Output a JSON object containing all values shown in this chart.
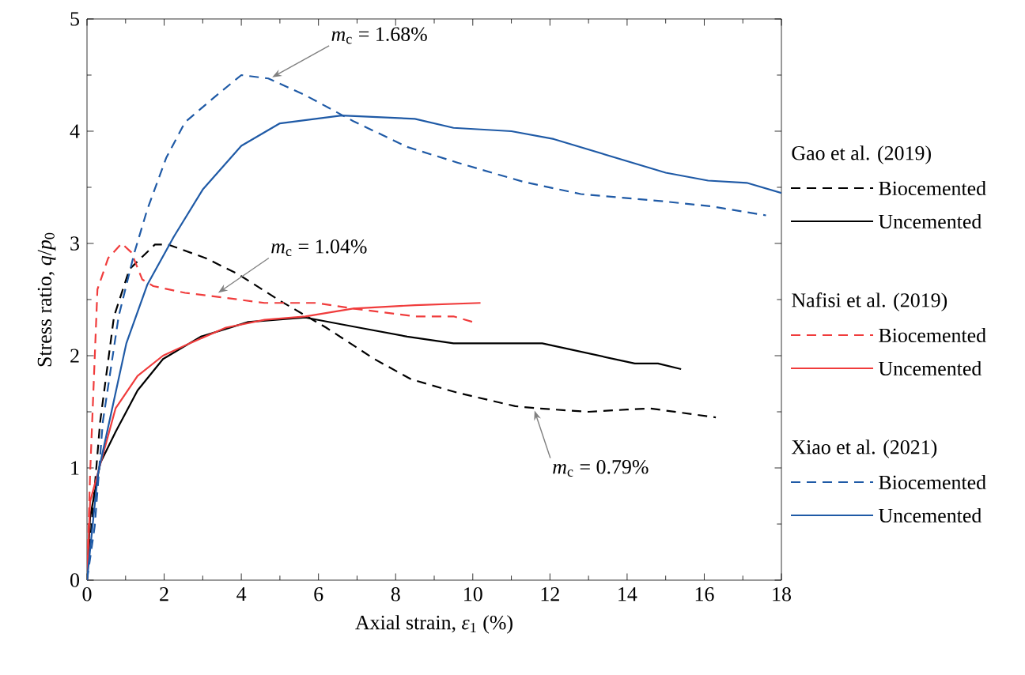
{
  "chart_data": {
    "type": "line",
    "xlabel": "Axial strain, *ε*$_{1}$ (%)",
    "ylabel": "Stress ratio, *q*/*p*$_{0}$",
    "xlim": [
      0,
      18
    ],
    "ylim": [
      0,
      5
    ],
    "xticks": [
      0,
      2,
      4,
      6,
      8,
      10,
      12,
      14,
      16,
      18
    ],
    "yticks": [
      0,
      1,
      2,
      3,
      4,
      5
    ],
    "grid": false,
    "legend": "right",
    "marker": "none",
    "annotations": [
      {
        "text": "*m*$_{c}$ = 1.68%",
        "x": 4.8,
        "y": 4.48
      },
      {
        "text": "*m*$_{c}$ = 1.04%",
        "x": 3.4,
        "y": 2.56
      },
      {
        "text": "*m*$_{c}$ = 0.79%",
        "x": 11.6,
        "y": 1.51
      },
      "Gao et al. (2019)",
      "Nafisi et al. (2019)",
      "Xiao et al. (2021)"
    ],
    "series": [
      {
        "name": "Biocemented",
        "color": "#000000",
        "line_style": "dashed",
        "x": [
          0,
          0.34,
          0.7,
          1.1,
          1.76,
          2.1,
          3.07,
          3.9,
          5.0,
          6.2,
          7.45,
          8.4,
          9.6,
          11.1,
          11.7,
          13.0,
          14.0,
          14.6,
          16.3
        ],
        "values": [
          0,
          1.41,
          2.35,
          2.77,
          2.99,
          2.99,
          2.87,
          2.73,
          2.49,
          2.25,
          1.97,
          1.79,
          1.67,
          1.55,
          1.53,
          1.5,
          1.52,
          1.53,
          1.45
        ]
      },
      {
        "name": "Uncemented",
        "color": "#000000",
        "line_style": "solid",
        "x": [
          0,
          0.08,
          0.34,
          0.74,
          1.31,
          1.97,
          2.95,
          4.18,
          5.66,
          7.05,
          8.3,
          9.5,
          10.3,
          11.8,
          13.0,
          14.2,
          14.8,
          15.4
        ],
        "values": [
          0,
          0.56,
          1.04,
          1.32,
          1.69,
          1.97,
          2.17,
          2.3,
          2.34,
          2.25,
          2.17,
          2.11,
          2.11,
          2.11,
          2.02,
          1.93,
          1.93,
          1.88
        ]
      },
      {
        "name": "Biocemented",
        "color": "#f03c3c",
        "line_style": "dashed",
        "x": [
          0,
          0.08,
          0.27,
          0.55,
          0.9,
          1.15,
          1.43,
          1.72,
          2.54,
          3.48,
          4.6,
          5.95,
          6.9,
          8.5,
          9.5,
          10.0
        ],
        "values": [
          0,
          0.94,
          2.59,
          2.87,
          3.0,
          2.92,
          2.68,
          2.62,
          2.56,
          2.52,
          2.47,
          2.47,
          2.42,
          2.35,
          2.35,
          2.3
        ]
      },
      {
        "name": "Uncemented",
        "color": "#f03c3c",
        "line_style": "solid",
        "x": [
          0,
          0.08,
          0.74,
          1.31,
          1.97,
          2.66,
          3.6,
          4.6,
          5.66,
          6.9,
          8.5,
          10.2
        ],
        "values": [
          0,
          0.7,
          1.53,
          1.82,
          2.0,
          2.11,
          2.25,
          2.32,
          2.35,
          2.42,
          2.45,
          2.47
        ]
      },
      {
        "name": "Biocemented",
        "color": "#1f5aa6",
        "line_style": "dashed",
        "x": [
          0,
          0.2,
          0.41,
          0.82,
          1.23,
          1.56,
          2.05,
          2.54,
          3.36,
          4.0,
          4.7,
          5.66,
          6.9,
          8.3,
          9.6,
          11.3,
          12.8,
          14.8,
          16.2,
          17.6
        ],
        "values": [
          0,
          0.48,
          1.41,
          2.35,
          2.92,
          3.3,
          3.76,
          4.08,
          4.32,
          4.5,
          4.47,
          4.32,
          4.09,
          3.86,
          3.72,
          3.55,
          3.44,
          3.38,
          3.33,
          3.25
        ]
      },
      {
        "name": "Uncemented",
        "color": "#1f5aa6",
        "line_style": "solid",
        "x": [
          0,
          0.28,
          1.02,
          1.56,
          2.25,
          3.0,
          4.0,
          5.0,
          6.6,
          8.5,
          9.5,
          11.0,
          12.1,
          15.0,
          16.1,
          17.1,
          18.0
        ],
        "values": [
          0,
          0.94,
          2.11,
          2.63,
          3.06,
          3.48,
          3.87,
          4.07,
          4.14,
          4.11,
          4.03,
          4.0,
          3.93,
          3.63,
          3.56,
          3.54,
          3.45
        ]
      }
    ]
  }
}
